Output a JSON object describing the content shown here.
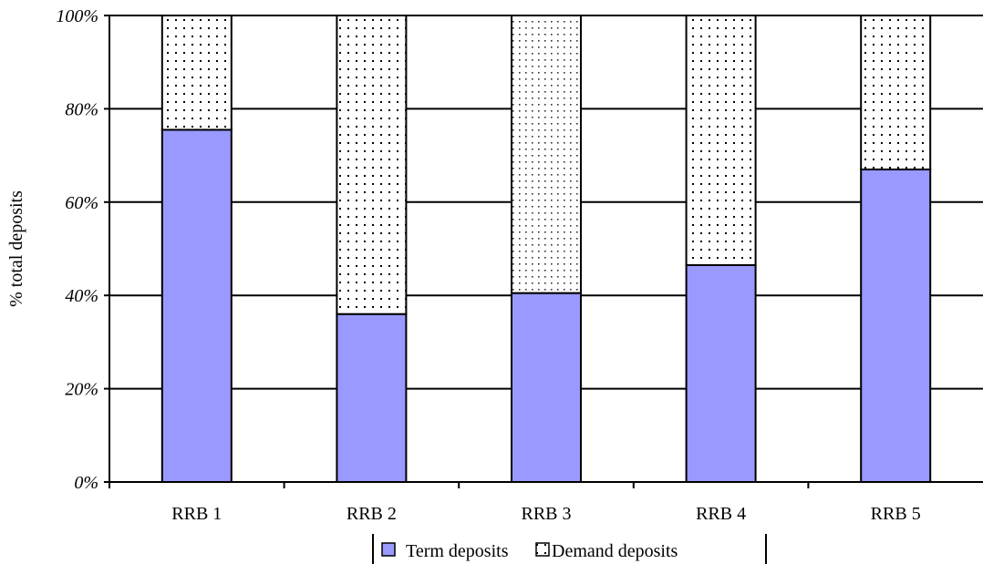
{
  "chart_data": {
    "type": "bar",
    "stacked": true,
    "categories": [
      "RRB 1",
      "RRB 2",
      "RRB 3",
      "RRB 4",
      "RRB 5"
    ],
    "series": [
      {
        "name": "Term deposits",
        "values": [
          75.5,
          36,
          40.5,
          46.5,
          67
        ],
        "color": "#9999ff",
        "pattern": "solid"
      },
      {
        "name": "Demand deposits",
        "values": [
          24.5,
          64,
          59.5,
          53.5,
          33
        ],
        "color": "#ffffff",
        "pattern": "dots"
      }
    ],
    "ylabel": "% total deposits",
    "ylim": [
      0,
      100
    ],
    "yticks": [
      0,
      20,
      40,
      60,
      80,
      100
    ],
    "ytick_labels": [
      "0%",
      "20%",
      "40%",
      "60%",
      "80%",
      "100%"
    ],
    "grid": true,
    "legend_position": "bottom"
  }
}
